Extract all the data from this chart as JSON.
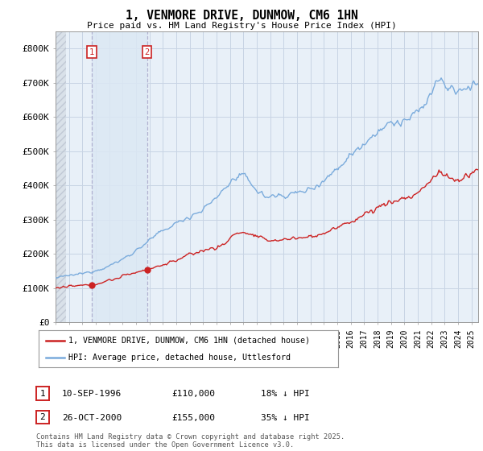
{
  "title": "1, VENMORE DRIVE, DUNMOW, CM6 1HN",
  "subtitle": "Price paid vs. HM Land Registry's House Price Index (HPI)",
  "ylim": [
    0,
    850000
  ],
  "yticks": [
    0,
    100000,
    200000,
    300000,
    400000,
    500000,
    600000,
    700000,
    800000
  ],
  "ytick_labels": [
    "£0",
    "£100K",
    "£200K",
    "£300K",
    "£400K",
    "£500K",
    "£600K",
    "£700K",
    "£800K"
  ],
  "hpi_color": "#7aabdc",
  "price_color": "#cc2222",
  "sale1_year": 1996.71,
  "sale1_price": 110000,
  "sale1_date": "10-SEP-1996",
  "sale1_hpi_text": "18% ↓ HPI",
  "sale2_year": 2000.82,
  "sale2_price": 155000,
  "sale2_date": "26-OCT-2000",
  "sale2_hpi_text": "35% ↓ HPI",
  "legend_label1": "1, VENMORE DRIVE, DUNMOW, CM6 1HN (detached house)",
  "legend_label2": "HPI: Average price, detached house, Uttlesford",
  "footer": "Contains HM Land Registry data © Crown copyright and database right 2025.\nThis data is licensed under the Open Government Licence v3.0.",
  "background_color": "#ffffff",
  "plot_bg_color": "#e8f0f8",
  "grid_color": "#c8d4e4",
  "shade_color": "#dce8f4"
}
